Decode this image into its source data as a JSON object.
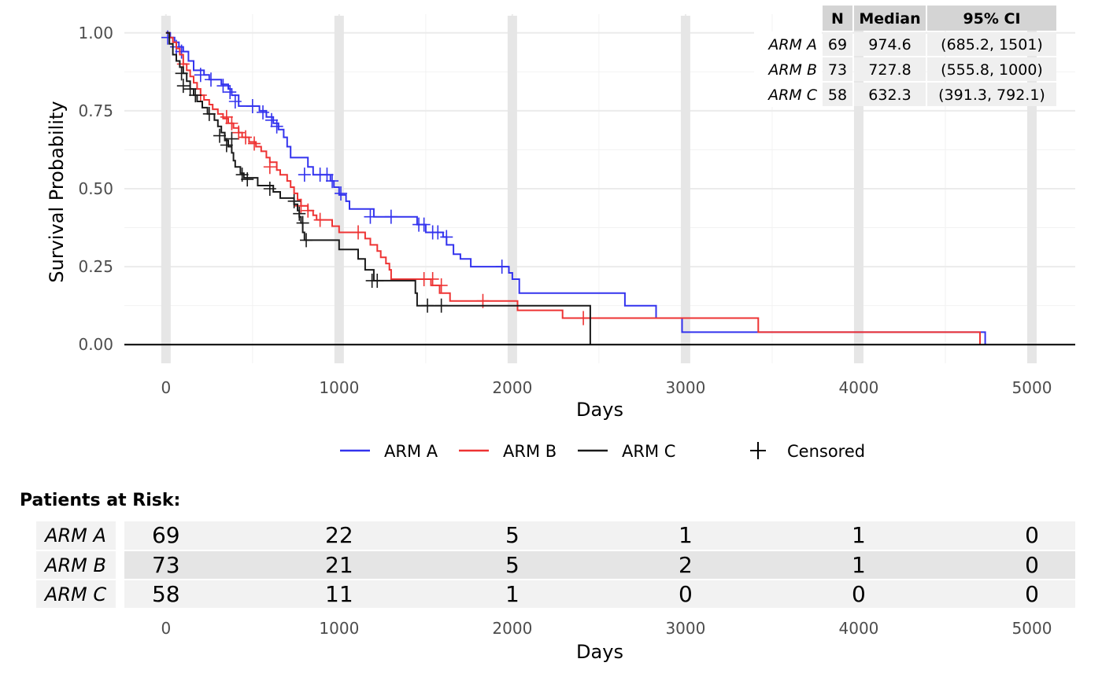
{
  "chart_data": {
    "type": "line",
    "subtype": "kaplan-meier",
    "xlabel": "Days",
    "ylabel": "Survival Probability",
    "xlim": [
      -240,
      5250
    ],
    "ylim": [
      -0.06,
      1.06
    ],
    "xticks": [
      0,
      1000,
      2000,
      3000,
      4000,
      5000
    ],
    "xtick_labels": [
      "0",
      "1000",
      "2000",
      "3000",
      "4000",
      "5000"
    ],
    "yticks": [
      0,
      0.25,
      0.5,
      0.75,
      1
    ],
    "ytick_labels": [
      "0.00",
      "0.25",
      "0.50",
      "0.75",
      "1.00"
    ],
    "grid": true,
    "legend_position": "bottom",
    "legend_censored_label": "Censored",
    "series": [
      {
        "name": "ARM A",
        "color": "#3333ee",
        "steps": [
          [
            0,
            1.0
          ],
          [
            25,
            0.985
          ],
          [
            50,
            0.97
          ],
          [
            75,
            0.955
          ],
          [
            100,
            0.94
          ],
          [
            130,
            0.91
          ],
          [
            160,
            0.88
          ],
          [
            220,
            0.865
          ],
          [
            250,
            0.85
          ],
          [
            300,
            0.85
          ],
          [
            320,
            0.835
          ],
          [
            360,
            0.82
          ],
          [
            380,
            0.8
          ],
          [
            420,
            0.765
          ],
          [
            520,
            0.765
          ],
          [
            540,
            0.75
          ],
          [
            580,
            0.73
          ],
          [
            620,
            0.71
          ],
          [
            650,
            0.69
          ],
          [
            680,
            0.665
          ],
          [
            700,
            0.635
          ],
          [
            720,
            0.6
          ],
          [
            820,
            0.57
          ],
          [
            850,
            0.545
          ],
          [
            950,
            0.525
          ],
          [
            970,
            0.505
          ],
          [
            1000,
            0.48
          ],
          [
            1040,
            0.46
          ],
          [
            1060,
            0.435
          ],
          [
            1200,
            0.41
          ],
          [
            1450,
            0.385
          ],
          [
            1500,
            0.36
          ],
          [
            1600,
            0.345
          ],
          [
            1620,
            0.32
          ],
          [
            1660,
            0.29
          ],
          [
            1700,
            0.275
          ],
          [
            1760,
            0.25
          ],
          [
            1980,
            0.23
          ],
          [
            2000,
            0.21
          ],
          [
            2040,
            0.165
          ],
          [
            2650,
            0.125
          ],
          [
            2830,
            0.085
          ],
          [
            2980,
            0.04
          ],
          [
            4730,
            0.0
          ]
        ],
        "end_x": 4730,
        "censored": [
          [
            10,
            0.985
          ],
          [
            60,
            0.955
          ],
          [
            90,
            0.94
          ],
          [
            200,
            0.865
          ],
          [
            260,
            0.85
          ],
          [
            330,
            0.83
          ],
          [
            370,
            0.81
          ],
          [
            400,
            0.78
          ],
          [
            500,
            0.765
          ],
          [
            560,
            0.745
          ],
          [
            610,
            0.72
          ],
          [
            640,
            0.7
          ],
          [
            800,
            0.545
          ],
          [
            890,
            0.545
          ],
          [
            930,
            0.545
          ],
          [
            960,
            0.525
          ],
          [
            1010,
            0.485
          ],
          [
            1180,
            0.41
          ],
          [
            1300,
            0.41
          ],
          [
            1460,
            0.385
          ],
          [
            1490,
            0.385
          ],
          [
            1540,
            0.36
          ],
          [
            1570,
            0.36
          ],
          [
            1620,
            0.345
          ],
          [
            1940,
            0.25
          ]
        ]
      },
      {
        "name": "ARM B",
        "color": "#ee3333",
        "steps": [
          [
            0,
            1.0
          ],
          [
            20,
            0.985
          ],
          [
            40,
            0.97
          ],
          [
            60,
            0.95
          ],
          [
            80,
            0.93
          ],
          [
            100,
            0.9
          ],
          [
            120,
            0.88
          ],
          [
            140,
            0.86
          ],
          [
            160,
            0.84
          ],
          [
            180,
            0.82
          ],
          [
            200,
            0.8
          ],
          [
            220,
            0.785
          ],
          [
            250,
            0.77
          ],
          [
            270,
            0.755
          ],
          [
            300,
            0.74
          ],
          [
            330,
            0.725
          ],
          [
            360,
            0.71
          ],
          [
            390,
            0.695
          ],
          [
            420,
            0.68
          ],
          [
            440,
            0.665
          ],
          [
            480,
            0.65
          ],
          [
            520,
            0.635
          ],
          [
            550,
            0.62
          ],
          [
            580,
            0.6
          ],
          [
            600,
            0.585
          ],
          [
            640,
            0.56
          ],
          [
            660,
            0.545
          ],
          [
            700,
            0.525
          ],
          [
            720,
            0.505
          ],
          [
            740,
            0.485
          ],
          [
            760,
            0.465
          ],
          [
            780,
            0.445
          ],
          [
            820,
            0.43
          ],
          [
            850,
            0.415
          ],
          [
            870,
            0.4
          ],
          [
            960,
            0.38
          ],
          [
            1000,
            0.36
          ],
          [
            1150,
            0.34
          ],
          [
            1180,
            0.32
          ],
          [
            1220,
            0.3
          ],
          [
            1240,
            0.28
          ],
          [
            1270,
            0.26
          ],
          [
            1290,
            0.24
          ],
          [
            1300,
            0.21
          ],
          [
            1530,
            0.19
          ],
          [
            1580,
            0.165
          ],
          [
            1640,
            0.14
          ],
          [
            2030,
            0.11
          ],
          [
            2290,
            0.085
          ],
          [
            3420,
            0.04
          ],
          [
            4700,
            0.0
          ]
        ],
        "end_x": 4700,
        "censored": [
          [
            100,
            0.9
          ],
          [
            200,
            0.8
          ],
          [
            350,
            0.73
          ],
          [
            380,
            0.71
          ],
          [
            420,
            0.68
          ],
          [
            460,
            0.665
          ],
          [
            510,
            0.645
          ],
          [
            600,
            0.57
          ],
          [
            780,
            0.445
          ],
          [
            820,
            0.43
          ],
          [
            890,
            0.4
          ],
          [
            1110,
            0.36
          ],
          [
            1490,
            0.21
          ],
          [
            1540,
            0.21
          ],
          [
            1590,
            0.19
          ],
          [
            1830,
            0.14
          ],
          [
            2410,
            0.085
          ]
        ]
      },
      {
        "name": "ARM C",
        "color": "#1a1a1a",
        "steps": [
          [
            0,
            1.0
          ],
          [
            20,
            0.965
          ],
          [
            40,
            0.93
          ],
          [
            60,
            0.91
          ],
          [
            80,
            0.89
          ],
          [
            100,
            0.87
          ],
          [
            120,
            0.845
          ],
          [
            140,
            0.82
          ],
          [
            160,
            0.8
          ],
          [
            180,
            0.78
          ],
          [
            210,
            0.76
          ],
          [
            240,
            0.74
          ],
          [
            280,
            0.72
          ],
          [
            300,
            0.7
          ],
          [
            320,
            0.68
          ],
          [
            340,
            0.655
          ],
          [
            360,
            0.635
          ],
          [
            380,
            0.615
          ],
          [
            390,
            0.59
          ],
          [
            400,
            0.57
          ],
          [
            430,
            0.55
          ],
          [
            450,
            0.535
          ],
          [
            530,
            0.51
          ],
          [
            620,
            0.49
          ],
          [
            660,
            0.47
          ],
          [
            740,
            0.45
          ],
          [
            760,
            0.43
          ],
          [
            770,
            0.41
          ],
          [
            780,
            0.39
          ],
          [
            790,
            0.36
          ],
          [
            800,
            0.335
          ],
          [
            1000,
            0.305
          ],
          [
            1110,
            0.275
          ],
          [
            1150,
            0.24
          ],
          [
            1200,
            0.205
          ],
          [
            1440,
            0.165
          ],
          [
            1450,
            0.125
          ],
          [
            2450,
            0.0
          ]
        ],
        "end_x": 2450,
        "censored": [
          [
            90,
            0.87
          ],
          [
            100,
            0.83
          ],
          [
            140,
            0.82
          ],
          [
            170,
            0.8
          ],
          [
            250,
            0.74
          ],
          [
            310,
            0.67
          ],
          [
            350,
            0.64
          ],
          [
            380,
            0.66
          ],
          [
            440,
            0.545
          ],
          [
            470,
            0.53
          ],
          [
            600,
            0.5
          ],
          [
            740,
            0.46
          ],
          [
            770,
            0.42
          ],
          [
            790,
            0.39
          ],
          [
            810,
            0.335
          ],
          [
            1190,
            0.205
          ],
          [
            1220,
            0.205
          ],
          [
            1510,
            0.125
          ],
          [
            1590,
            0.125
          ]
        ]
      }
    ],
    "median_table": {
      "headers": [
        "N",
        "Median",
        "95% CI"
      ],
      "rows": [
        {
          "arm": "ARM A",
          "n": "69",
          "median": "974.6",
          "ci": "(685.2, 1501)"
        },
        {
          "arm": "ARM B",
          "n": "73",
          "median": "727.8",
          "ci": "(555.8, 1000)"
        },
        {
          "arm": "ARM C",
          "n": "58",
          "median": "632.3",
          "ci": "(391.3, 792.1)"
        }
      ]
    },
    "risk_table": {
      "title": "Patients at Risk:",
      "xlabel": "Days",
      "times": [
        0,
        1000,
        2000,
        3000,
        4000,
        5000
      ],
      "time_labels": [
        "0",
        "1000",
        "2000",
        "3000",
        "4000",
        "5000"
      ],
      "rows": [
        {
          "arm": "ARM A",
          "values": [
            "69",
            "22",
            "5",
            "1",
            "1",
            "0"
          ]
        },
        {
          "arm": "ARM B",
          "values": [
            "73",
            "21",
            "5",
            "2",
            "1",
            "0"
          ]
        },
        {
          "arm": "ARM C",
          "values": [
            "58",
            "11",
            "1",
            "0",
            "0",
            "0"
          ]
        }
      ]
    }
  }
}
